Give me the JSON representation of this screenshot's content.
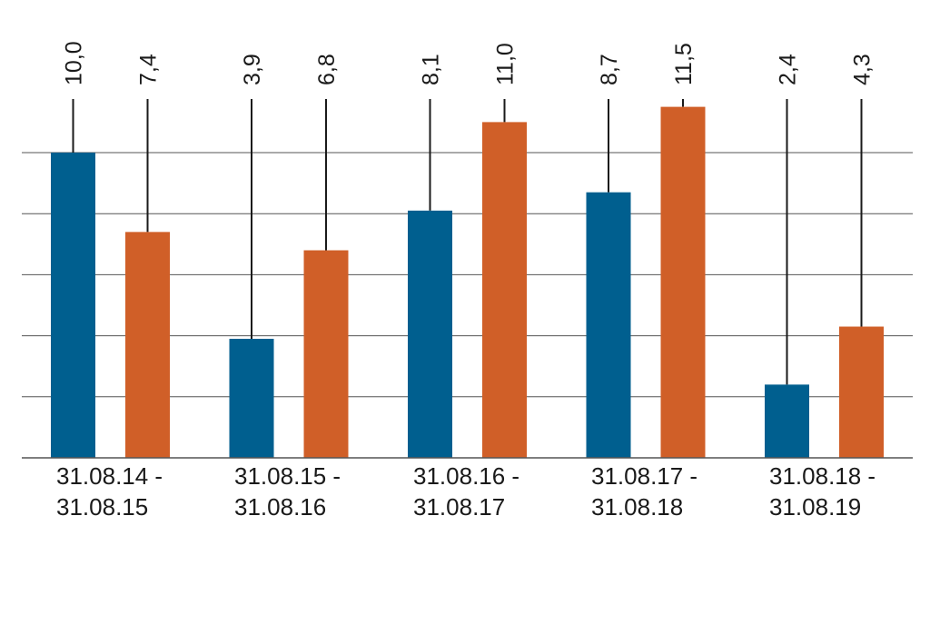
{
  "chart_data": {
    "type": "bar",
    "categories": [
      [
        "31.08.14 -",
        "31.08.15"
      ],
      [
        "31.08.15 -",
        "31.08.16"
      ],
      [
        "31.08.16 -",
        "31.08.17"
      ],
      [
        "31.08.17 -",
        "31.08.18"
      ],
      [
        "31.08.18 -",
        "31.08.19"
      ]
    ],
    "series": [
      {
        "values": [
          10.0,
          3.9,
          8.1,
          8.7,
          2.4
        ],
        "value_labels": [
          "10,0",
          "3,9",
          "8,1",
          "8,7",
          "2,4"
        ],
        "color": "#005f8f"
      },
      {
        "values": [
          7.4,
          6.8,
          11.0,
          11.5,
          4.3
        ],
        "value_labels": [
          "7,4",
          "6,8",
          "11,0",
          "11,5",
          "4,3"
        ],
        "color": "#d05f28"
      }
    ],
    "ylim": [
      0,
      12
    ],
    "grid": true,
    "gridline_values": [
      2,
      4,
      6,
      8,
      10
    ],
    "title": "",
    "xlabel": "",
    "ylabel": ""
  }
}
